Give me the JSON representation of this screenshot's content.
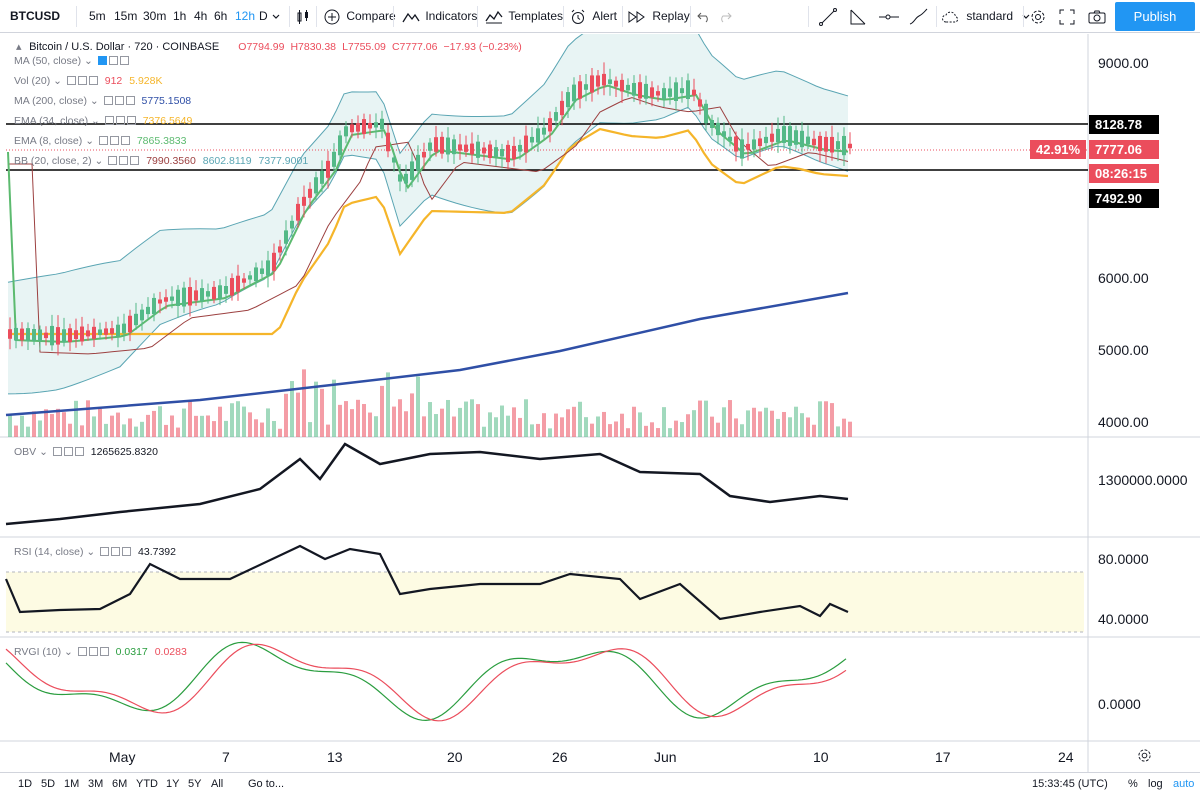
{
  "toolbar": {
    "symbol": "BTCUSD",
    "intervals": [
      "5m",
      "15m",
      "30m",
      "1h",
      "4h",
      "6h",
      "12h",
      "D"
    ],
    "active_interval": "12h",
    "compare": "Compare",
    "indicators": "Indicators",
    "templates": "Templates",
    "alert": "Alert",
    "replay": "Replay",
    "layout": "standard",
    "publish": "Publish"
  },
  "legend": {
    "title": "Bitcoin / U.S. Dollar",
    "interval": "720",
    "exchange": "COINBASE",
    "ohlc": {
      "o": "O7794.99",
      "h": "H7830.38",
      "l": "L7755.09",
      "c": "C7777.06",
      "chg": "−17.93 (−0.23%)"
    },
    "ma50": {
      "label": "MA (50, close)"
    },
    "vol": {
      "label": "Vol (20)",
      "v1": "912",
      "v2": "5.928K"
    },
    "ma200": {
      "label": "MA (200, close)",
      "v": "5775.1508"
    },
    "ema34": {
      "label": "EMA (34, close)",
      "v": "7376.5649"
    },
    "ema8": {
      "label": "EMA (8, close)",
      "v": "7865.3833"
    },
    "bb": {
      "label": "BB (20, close, 2)",
      "v1": "7990.3560",
      "v2": "8602.8119",
      "v3": "7377.9001"
    },
    "obv": {
      "label": "OBV",
      "v": "1265625.8320"
    },
    "rsi": {
      "label": "RSI (14, close)",
      "v": "43.7392"
    },
    "rvgi": {
      "label": "RVGI (10)",
      "v1": "0.0317",
      "v2": "0.0283"
    }
  },
  "price_axis": {
    "labels": [
      "9000.00",
      "6000.00",
      "5000.00",
      "4000.00"
    ],
    "hline_upper": "8128.78",
    "hline_lower": "7492.90",
    "current": "7777.06",
    "current_pct": "42.91%",
    "countdown": "08:26:15"
  },
  "obv_axis": {
    "labels": [
      "1300000.0000"
    ]
  },
  "rsi_axis": {
    "labels": [
      "80.0000",
      "40.0000"
    ]
  },
  "rvgi_axis": {
    "labels": [
      "0.0000"
    ]
  },
  "time_axis": [
    "May",
    "7",
    "13",
    "20",
    "26",
    "Jun",
    "10",
    "17",
    "24"
  ],
  "bottom": {
    "ranges": [
      "1D",
      "5D",
      "1M",
      "3M",
      "6M",
      "YTD",
      "1Y",
      "5Y",
      "All"
    ],
    "goto": "Go to...",
    "clock": "15:33:45 (UTC)",
    "percent": "%",
    "log": "log",
    "auto": "auto"
  },
  "colors": {
    "up": "#53b987",
    "down": "#eb4d5c",
    "ma200": "#2f4fa6",
    "ema34": "#f5b52a",
    "ema8": "#5cba6f",
    "bb_fill": "#e8f4f4",
    "bb_band": "#5aa5b3",
    "ma50": "#9c4040",
    "accent": "#2196f3"
  }
}
